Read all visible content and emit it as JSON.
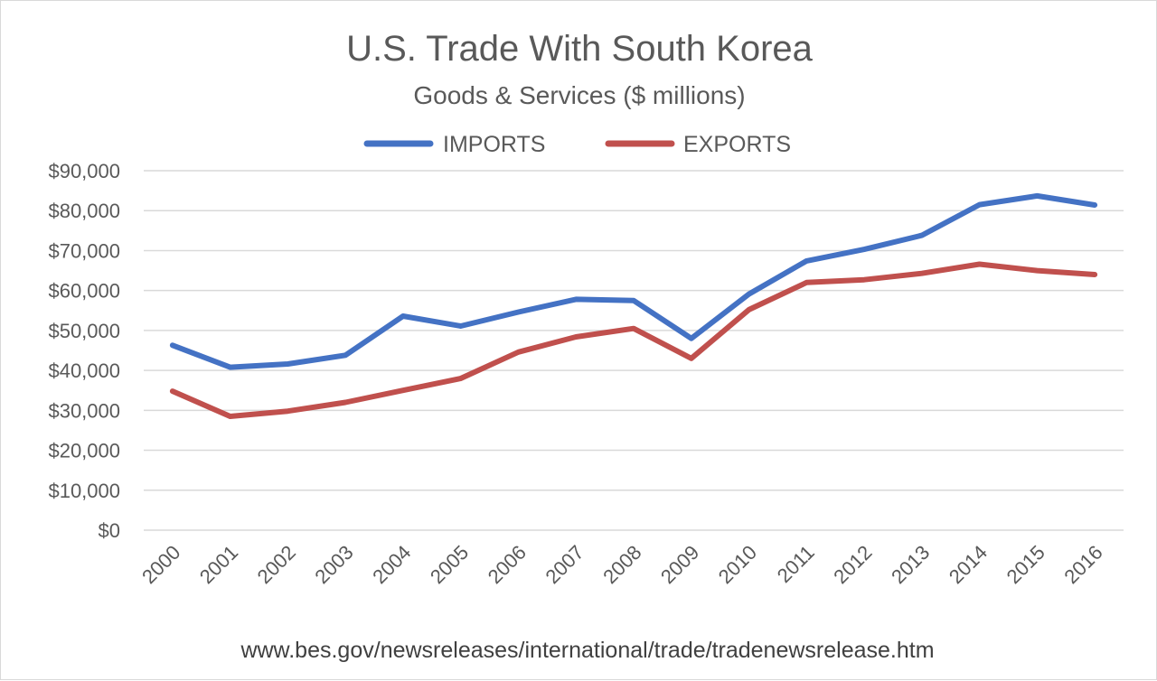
{
  "chart_data": {
    "type": "line",
    "title": "U.S. Trade With South Korea",
    "subtitle": "Goods & Services ($ millions)",
    "source": "www.bes.gov/newsreleases/international/trade/tradenewsrelease.htm",
    "xlabel": "",
    "ylabel": "",
    "categories": [
      "2000",
      "2001",
      "2002",
      "2003",
      "2004",
      "2005",
      "2006",
      "2007",
      "2008",
      "2009",
      "2010",
      "2011",
      "2012",
      "2013",
      "2014",
      "2015",
      "2016"
    ],
    "series": [
      {
        "name": "IMPORTS",
        "color": "#4472c4",
        "values": [
          46300,
          40800,
          41600,
          43800,
          53600,
          51100,
          54600,
          57800,
          57500,
          48000,
          59100,
          67400,
          70300,
          73800,
          81500,
          83700,
          81400
        ]
      },
      {
        "name": "EXPORTS",
        "color": "#c0504d",
        "values": [
          34800,
          28500,
          29800,
          32000,
          35000,
          38000,
          44600,
          48400,
          50500,
          43000,
          55200,
          62000,
          62700,
          64300,
          66600,
          65000,
          64000
        ]
      }
    ],
    "ylim": [
      0,
      90000
    ],
    "yticks": [
      "$0",
      "$10,000",
      "$20,000",
      "$30,000",
      "$40,000",
      "$50,000",
      "$60,000",
      "$70,000",
      "$80,000",
      "$90,000"
    ],
    "grid": true,
    "legend_position": "top-center"
  }
}
